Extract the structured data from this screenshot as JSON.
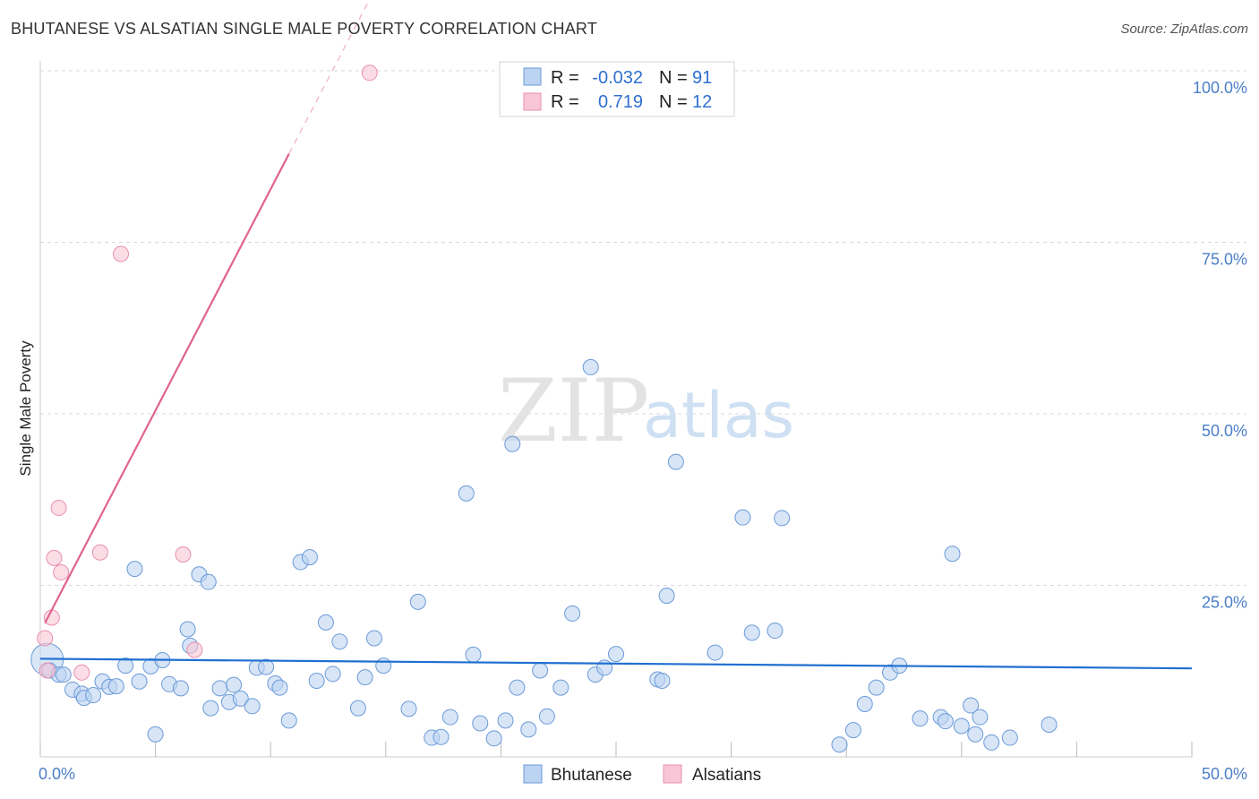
{
  "title": "BHUTANESE VS ALSATIAN SINGLE MALE POVERTY CORRELATION CHART",
  "source": "Source: ZipAtlas.com",
  "watermark": {
    "zip": "ZIP",
    "atlas": "atlas"
  },
  "colors": {
    "blue_fill": "#bcd3f1",
    "blue_stroke": "#6b9ad8",
    "blue_line": "#1f6fd1",
    "pink_fill": "#f8c6d6",
    "pink_stroke": "#e890ad",
    "pink_line": "#e0648c",
    "grid": "#d9d9d9",
    "tick_text": "#4a7fc8"
  },
  "legend": {
    "rows": [
      {
        "r_label": "R =",
        "r_value": "-0.032",
        "n_label": "N =",
        "n_value": "91"
      },
      {
        "r_label": "R =",
        "r_value": "0.719",
        "n_label": "N =",
        "n_value": "12"
      }
    ]
  },
  "chart_data": {
    "type": "scatter",
    "xlabel": "",
    "ylabel": "Single Male Poverty",
    "xlim": [
      0,
      50
    ],
    "ylim": [
      0,
      100
    ],
    "x_tick_labels": [
      "0.0%",
      "50.0%"
    ],
    "y_tick_labels": [
      "25.0%",
      "50.0%",
      "75.0%",
      "100.0%"
    ],
    "y_ticks": [
      25,
      50,
      75,
      100
    ],
    "grid": true,
    "legend_position": "top-center",
    "series": [
      {
        "name": "Bhutanese",
        "trend": {
          "x": [
            0,
            50
          ],
          "y": [
            14.3,
            12.9
          ]
        },
        "points": [
          [
            0.3,
            14.2
          ],
          [
            0.4,
            12.6
          ],
          [
            0.8,
            12.0
          ],
          [
            1.0,
            12.0
          ],
          [
            1.4,
            9.8
          ],
          [
            1.8,
            9.2
          ],
          [
            1.9,
            8.6
          ],
          [
            2.3,
            9.0
          ],
          [
            2.7,
            11.0
          ],
          [
            3.0,
            10.2
          ],
          [
            3.3,
            10.3
          ],
          [
            3.7,
            13.3
          ],
          [
            4.1,
            27.4
          ],
          [
            4.3,
            11.0
          ],
          [
            4.8,
            13.2
          ],
          [
            5.0,
            3.3
          ],
          [
            5.3,
            14.1
          ],
          [
            5.6,
            10.6
          ],
          [
            6.1,
            10.0
          ],
          [
            6.4,
            18.6
          ],
          [
            6.5,
            16.2
          ],
          [
            6.9,
            26.6
          ],
          [
            7.3,
            25.5
          ],
          [
            7.4,
            7.1
          ],
          [
            7.8,
            10.0
          ],
          [
            8.2,
            8.0
          ],
          [
            8.4,
            10.5
          ],
          [
            8.7,
            8.5
          ],
          [
            9.2,
            7.4
          ],
          [
            9.4,
            13.0
          ],
          [
            9.8,
            13.1
          ],
          [
            10.2,
            10.7
          ],
          [
            10.4,
            10.1
          ],
          [
            10.8,
            5.3
          ],
          [
            11.3,
            28.4
          ],
          [
            11.7,
            29.1
          ],
          [
            12.0,
            11.1
          ],
          [
            12.4,
            19.6
          ],
          [
            12.7,
            12.1
          ],
          [
            13.0,
            16.8
          ],
          [
            13.8,
            7.1
          ],
          [
            14.1,
            11.6
          ],
          [
            14.5,
            17.3
          ],
          [
            14.9,
            13.3
          ],
          [
            16.0,
            7.0
          ],
          [
            16.4,
            22.6
          ],
          [
            17.0,
            2.8
          ],
          [
            17.4,
            2.9
          ],
          [
            17.8,
            5.8
          ],
          [
            18.5,
            38.4
          ],
          [
            18.8,
            14.9
          ],
          [
            19.1,
            4.9
          ],
          [
            19.7,
            2.7
          ],
          [
            20.2,
            5.3
          ],
          [
            20.5,
            45.6
          ],
          [
            20.7,
            10.1
          ],
          [
            21.2,
            4.0
          ],
          [
            21.7,
            12.6
          ],
          [
            22.0,
            5.9
          ],
          [
            22.6,
            10.1
          ],
          [
            23.1,
            20.9
          ],
          [
            23.9,
            56.8
          ],
          [
            24.1,
            12.0
          ],
          [
            24.5,
            13.0
          ],
          [
            25.0,
            15.0
          ],
          [
            26.8,
            11.3
          ],
          [
            27.0,
            11.1
          ],
          [
            27.2,
            23.5
          ],
          [
            27.6,
            43.0
          ],
          [
            29.3,
            15.2
          ],
          [
            30.5,
            34.9
          ],
          [
            30.9,
            18.1
          ],
          [
            31.9,
            18.4
          ],
          [
            32.2,
            34.8
          ],
          [
            34.7,
            1.8
          ],
          [
            35.3,
            3.9
          ],
          [
            35.8,
            7.7
          ],
          [
            36.3,
            10.1
          ],
          [
            36.9,
            12.3
          ],
          [
            37.3,
            13.3
          ],
          [
            38.2,
            5.6
          ],
          [
            39.1,
            5.8
          ],
          [
            39.3,
            5.2
          ],
          [
            39.6,
            29.6
          ],
          [
            40.0,
            4.5
          ],
          [
            40.4,
            7.5
          ],
          [
            40.6,
            3.3
          ],
          [
            40.8,
            5.8
          ],
          [
            41.3,
            2.1
          ],
          [
            42.1,
            2.8
          ],
          [
            43.8,
            4.7
          ]
        ]
      },
      {
        "name": "Alsatians",
        "trend": {
          "x": [
            0.2,
            10.8
          ],
          "y": [
            19.5,
            87.9
          ]
        },
        "trend_dashed": {
          "x": [
            10.8,
            17.5
          ],
          "y": [
            87.9,
            131.0
          ]
        },
        "points": [
          [
            0.2,
            17.3
          ],
          [
            0.3,
            12.6
          ],
          [
            0.5,
            20.3
          ],
          [
            0.6,
            29.0
          ],
          [
            0.8,
            36.3
          ],
          [
            0.9,
            26.9
          ],
          [
            1.8,
            12.3
          ],
          [
            2.6,
            29.8
          ],
          [
            3.5,
            73.3
          ],
          [
            6.2,
            29.5
          ],
          [
            6.7,
            15.6
          ],
          [
            14.3,
            99.7
          ]
        ]
      }
    ]
  }
}
